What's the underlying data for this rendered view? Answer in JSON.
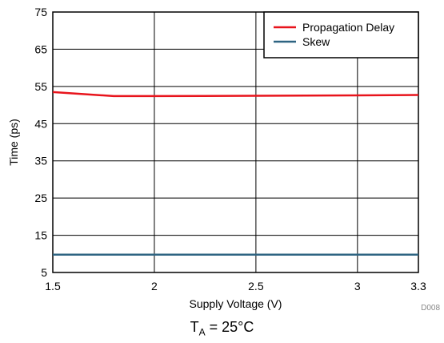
{
  "chart_data": {
    "type": "line",
    "xlabel": "Supply Voltage (V)",
    "ylabel": "Time (ps)",
    "xlim": [
      1.5,
      3.3
    ],
    "ylim": [
      5,
      75
    ],
    "x_ticks": [
      1.5,
      2,
      2.5,
      3,
      3.3
    ],
    "x_tick_labels": [
      "1.5",
      "2",
      "2.5",
      "3",
      "3.3"
    ],
    "y_ticks": [
      5,
      15,
      25,
      35,
      45,
      55,
      65,
      75
    ],
    "y_tick_labels": [
      "5",
      "15",
      "25",
      "35",
      "45",
      "55",
      "65",
      "75"
    ],
    "grid": true,
    "legend_position": "top-right",
    "series": [
      {
        "name": "Propagation Delay",
        "color": "#e8141c",
        "x": [
          1.5,
          1.8,
          2.0,
          2.5,
          3.0,
          3.3
        ],
        "y": [
          53.5,
          52.4,
          52.4,
          52.5,
          52.6,
          52.7
        ]
      },
      {
        "name": "Skew",
        "color": "#2e6482",
        "x": [
          1.5,
          2.0,
          2.5,
          3.0,
          3.3
        ],
        "y": [
          9.8,
          9.8,
          9.8,
          9.8,
          9.8
        ]
      }
    ],
    "figure_id": "D008"
  },
  "caption": {
    "prefix": "T",
    "subscript": "A",
    "suffix": " = 25°C"
  }
}
